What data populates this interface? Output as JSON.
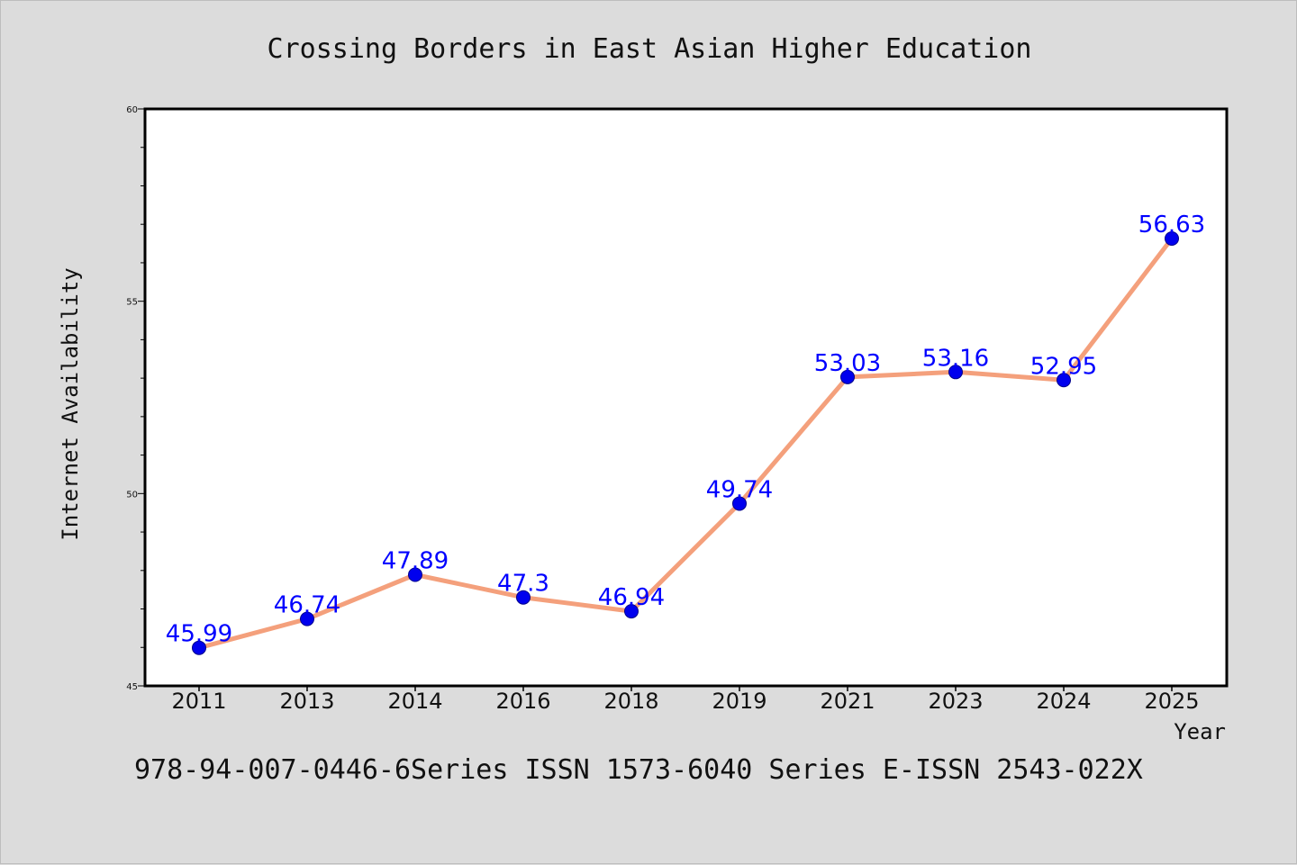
{
  "footer": "978-94-007-0446-6Series ISSN 1573-6040 Series E-ISSN 2543-022X",
  "colors": {
    "background": "#dcdcdc",
    "plot_background": "#ffffff",
    "line": "#f4a07c",
    "marker": "#0000ee",
    "data_label": "#0000ff"
  },
  "chart_data": {
    "type": "line",
    "title": "Crossing Borders in East Asian Higher Education",
    "xlabel": "Year",
    "ylabel": "Internet Availability",
    "categories": [
      "2011",
      "2013",
      "2014",
      "2016",
      "2018",
      "2019",
      "2021",
      "2023",
      "2024",
      "2025"
    ],
    "series": [
      {
        "values": [
          45.99,
          46.74,
          47.89,
          47.3,
          46.94,
          49.74,
          53.03,
          53.16,
          52.95,
          56.63
        ],
        "labels": [
          "45.99",
          "46.74",
          "47.89",
          "47.3",
          "46.94",
          "49.74",
          "53.03",
          "53.16",
          "52.95",
          "56.63"
        ]
      }
    ],
    "ylim": [
      45,
      60
    ],
    "yticks": [
      45,
      50,
      55,
      60
    ],
    "grid": false,
    "legend": "none"
  }
}
